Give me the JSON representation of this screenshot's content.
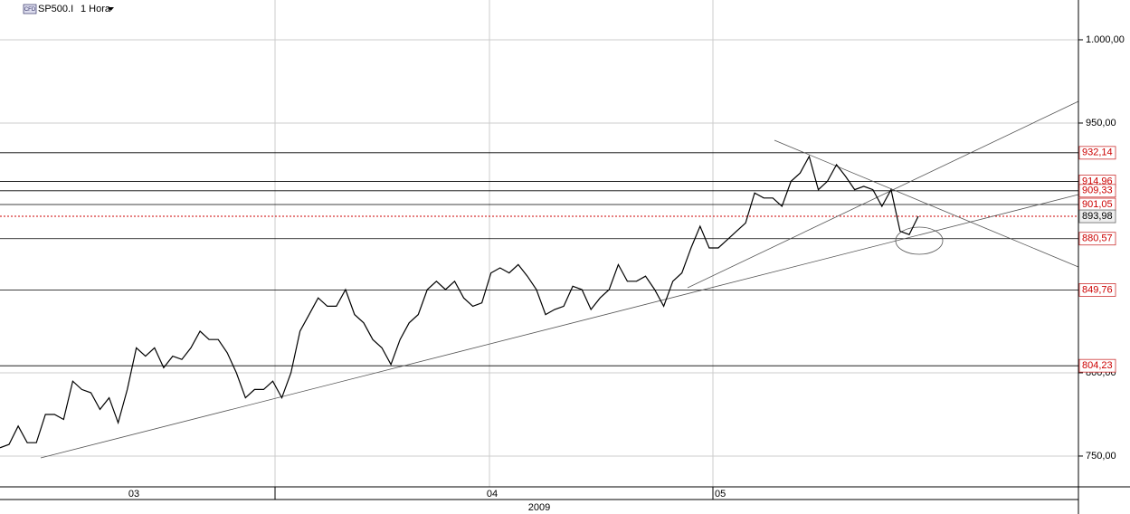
{
  "header": {
    "symbol": "SP500.I",
    "timeframe": "1 Hora",
    "badge": "CFD"
  },
  "chart_data": {
    "type": "line",
    "color": "#000000",
    "ylim": [
      731.5,
      1023.9
    ],
    "yticks": [
      {
        "value": 750,
        "label": "750,00"
      },
      {
        "value": 800,
        "label": "800,00"
      },
      {
        "value": 950,
        "label": "950,00"
      },
      {
        "value": 1000,
        "label": "1.000,00"
      }
    ],
    "months": [
      "03",
      "04",
      "05"
    ],
    "year": "2009",
    "levels": [
      {
        "value": 932.14,
        "label": "932,14"
      },
      {
        "value": 914.96,
        "label": "914,96"
      },
      {
        "value": 909.33,
        "label": "909,33"
      },
      {
        "value": 901.05,
        "label": "901,05"
      },
      {
        "value": 880.57,
        "label": "880,57"
      },
      {
        "value": 849.76,
        "label": "849,76"
      },
      {
        "value": 804.23,
        "label": "804,23"
      }
    ],
    "current": {
      "value": 893.98,
      "label": "893,98",
      "color": "#cc0000"
    },
    "values": [
      755,
      757,
      768,
      758,
      758,
      775,
      775,
      772,
      795,
      790,
      788,
      778,
      785,
      770,
      790,
      815,
      810,
      815,
      803,
      810,
      808,
      815,
      825,
      820,
      820,
      812,
      800,
      785,
      790,
      790,
      795,
      785,
      800,
      825,
      835,
      845,
      840,
      840,
      850,
      835,
      830,
      820,
      815,
      805,
      820,
      830,
      835,
      850,
      855,
      850,
      855,
      845,
      840,
      842,
      860,
      863,
      860,
      865,
      858,
      850,
      835,
      838,
      840,
      852,
      850,
      838,
      845,
      850,
      865,
      855,
      855,
      858,
      850,
      840,
      855,
      860,
      875,
      888,
      875,
      875,
      880,
      885,
      890,
      908,
      905,
      905,
      900,
      915,
      920,
      930,
      910,
      915,
      925,
      918,
      910,
      912,
      910,
      900,
      910,
      885,
      883,
      893.98
    ]
  }
}
